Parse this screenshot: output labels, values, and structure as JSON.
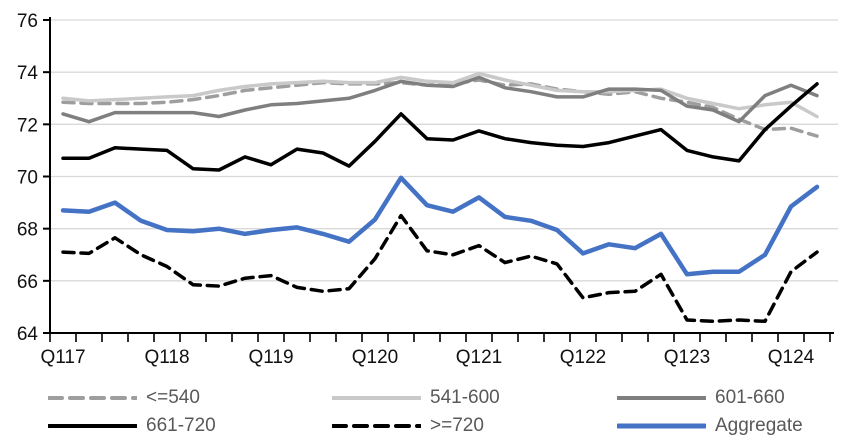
{
  "chart_data": {
    "type": "line",
    "title": "",
    "x_categories": [
      "Q1 2017",
      "Q2 2017",
      "Q3 2017",
      "Q4 2017",
      "Q1 2018",
      "Q2 2018",
      "Q3 2018",
      "Q4 2018",
      "Q1 2019",
      "Q2 2019",
      "Q3 2019",
      "Q4 2019",
      "Q1 2020",
      "Q2 2020",
      "Q3 2020",
      "Q4 2020",
      "Q1 2021",
      "Q2 2021",
      "Q3 2021",
      "Q4 2021",
      "Q1 2022",
      "Q2 2022",
      "Q3 2022",
      "Q4 2022",
      "Q1 2023",
      "Q2 2023",
      "Q3 2023",
      "Q4 2023",
      "Q1 2024",
      "Q2 2024"
    ],
    "x_tick_labels": [
      "Q117",
      "Q118",
      "Q119",
      "Q120",
      "Q121",
      "Q122",
      "Q123",
      "Q124"
    ],
    "x_tick_every": 4,
    "ylim": [
      64,
      76
    ],
    "y_ticks": [
      64,
      66,
      68,
      70,
      72,
      74,
      76
    ],
    "grid": "horizontal",
    "gridline_color": "#D9D9D9",
    "axis_color": "#000000",
    "legend_position": "bottom",
    "legend_text_color": "#595959",
    "series": [
      {
        "name": "<=540",
        "color": "#9E9E9E",
        "style": "dashed",
        "width": 3.5,
        "values": [
          72.85,
          72.8,
          72.8,
          72.8,
          72.85,
          72.95,
          73.1,
          73.3,
          73.4,
          73.5,
          73.6,
          73.55,
          73.55,
          73.6,
          73.5,
          73.55,
          73.7,
          73.5,
          73.55,
          73.35,
          73.25,
          73.15,
          73.25,
          73.0,
          72.85,
          72.65,
          72.2,
          71.8,
          71.85,
          71.55
        ]
      },
      {
        "name": "541-600",
        "color": "#C9C9C9",
        "style": "solid",
        "width": 3.5,
        "values": [
          73.0,
          72.9,
          72.95,
          73.0,
          73.05,
          73.1,
          73.3,
          73.45,
          73.55,
          73.6,
          73.65,
          73.6,
          73.6,
          73.8,
          73.65,
          73.6,
          73.95,
          73.7,
          73.5,
          73.3,
          73.25,
          73.25,
          73.3,
          73.35,
          73.0,
          72.8,
          72.6,
          72.75,
          72.85,
          72.3
        ]
      },
      {
        "name": "601-660",
        "color": "#7F7F7F",
        "style": "solid",
        "width": 3.5,
        "values": [
          72.4,
          72.1,
          72.45,
          72.45,
          72.45,
          72.45,
          72.3,
          72.55,
          72.75,
          72.8,
          72.9,
          73.0,
          73.3,
          73.65,
          73.5,
          73.45,
          73.8,
          73.4,
          73.25,
          73.05,
          73.05,
          73.35,
          73.35,
          73.3,
          72.7,
          72.55,
          72.1,
          73.1,
          73.5,
          73.1
        ]
      },
      {
        "name": "661-720",
        "color": "#000000",
        "style": "solid",
        "width": 3.5,
        "values": [
          70.7,
          70.7,
          71.1,
          71.05,
          71.0,
          70.3,
          70.25,
          70.75,
          70.45,
          71.05,
          70.9,
          70.4,
          71.35,
          72.4,
          71.45,
          71.4,
          71.75,
          71.45,
          71.3,
          71.2,
          71.15,
          71.3,
          71.55,
          71.8,
          71.0,
          70.75,
          70.6,
          71.8,
          72.7,
          73.55
        ]
      },
      {
        "name": ">=720",
        "color": "#000000",
        "style": "dashed",
        "width": 3.5,
        "values": [
          67.1,
          67.05,
          67.65,
          67.0,
          66.55,
          65.85,
          65.8,
          66.1,
          66.2,
          65.75,
          65.6,
          65.7,
          66.85,
          68.5,
          67.15,
          67.0,
          67.35,
          66.7,
          66.95,
          66.65,
          65.35,
          65.55,
          65.6,
          66.25,
          64.5,
          64.45,
          64.5,
          64.45,
          66.35,
          67.1
        ]
      },
      {
        "name": "Aggregate",
        "color": "#4472C4",
        "style": "solid",
        "width": 4.5,
        "values": [
          68.7,
          68.65,
          69.0,
          68.3,
          67.95,
          67.9,
          68.0,
          67.8,
          67.95,
          68.05,
          67.8,
          67.5,
          68.35,
          69.95,
          68.9,
          68.65,
          69.2,
          68.45,
          68.3,
          67.95,
          67.05,
          67.4,
          67.25,
          67.8,
          66.25,
          66.35,
          66.35,
          67.0,
          68.85,
          69.6
        ]
      }
    ]
  }
}
